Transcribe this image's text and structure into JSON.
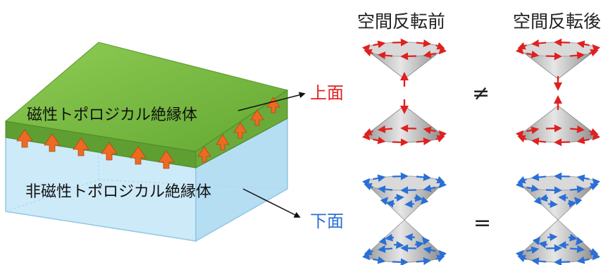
{
  "headers": {
    "before": "空間反転前",
    "after": "空間反転後"
  },
  "labels": {
    "magnetic": "磁性トポロジカル絶縁体",
    "nonmagnetic": "非磁性トポロジカル絶縁体"
  },
  "surfaces": {
    "top": "上面",
    "bottom": "下面"
  },
  "relations": {
    "top": "≠",
    "bottom": "="
  },
  "colors": {
    "magnetic_layer": "#7cb842",
    "insulator_block": "#bfe3f6",
    "top_surface_accent": "#e02020",
    "bottom_surface_accent": "#2a6fd6",
    "magnetization_arrow": "#ee6a22",
    "cone": "#c8c8c8"
  },
  "icons": [
    "magnetization-arrow-icon",
    "spin-arrow-icon",
    "dirac-cone-icon"
  ]
}
